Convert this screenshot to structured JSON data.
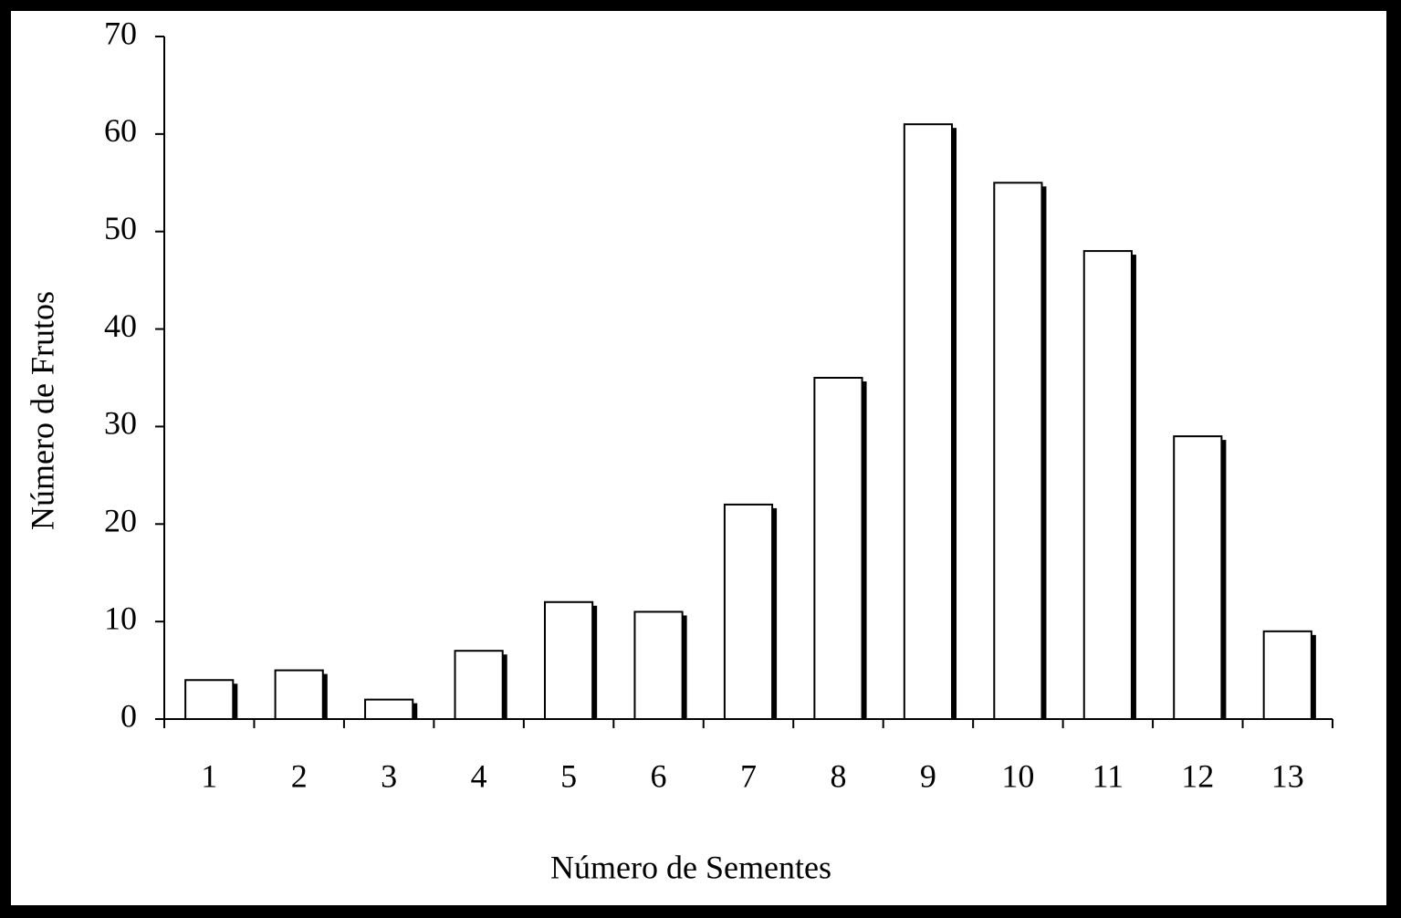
{
  "chart_data": {
    "type": "bar",
    "x_label": "Número de Sementes",
    "y_label": "Número de Frutos",
    "categories": [
      "1",
      "2",
      "3",
      "4",
      "5",
      "6",
      "7",
      "8",
      "9",
      "10",
      "11",
      "12",
      "13"
    ],
    "values": [
      4,
      5,
      2,
      7,
      12,
      11,
      22,
      35,
      61,
      55,
      48,
      29,
      9
    ],
    "color": "#ffffff",
    "ylim": [
      0,
      70
    ],
    "yticks": [
      0,
      10,
      20,
      30,
      40,
      50,
      60,
      70
    ],
    "grid": false
  }
}
